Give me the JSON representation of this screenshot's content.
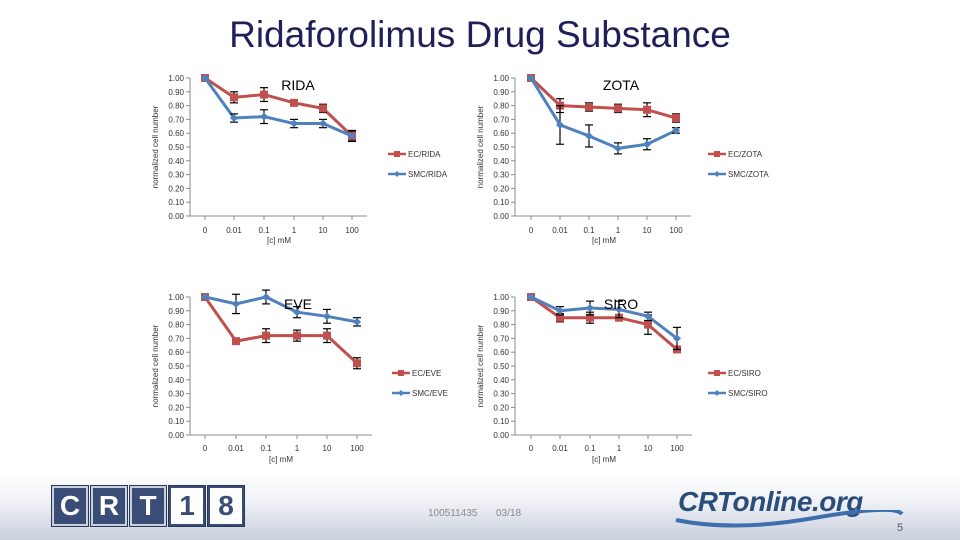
{
  "slide": {
    "title": "Ridaforolimus Drug Substance",
    "footer_id": "100511435",
    "footer_date": "03/18",
    "page_number": "5",
    "logo_left_letters": [
      "C",
      "R",
      "T",
      "1",
      "8"
    ],
    "logo_right_text": "CRTonline.org"
  },
  "colors": {
    "ec": "#c0504d",
    "smc": "#4f81bd",
    "title": "#1f1f5c",
    "axis": "#8c8c8c"
  },
  "chart_data": [
    {
      "type": "line",
      "title": "RIDA",
      "ylabel": "normalized cell number",
      "xlabel": "[c] mM",
      "categories": [
        "0",
        "0.01",
        "0.1",
        "1",
        "10",
        "100"
      ],
      "y_ticks": [
        "0.00",
        "0.10",
        "0.20",
        "0.30",
        "0.40",
        "0.50",
        "0.60",
        "0.70",
        "0.80",
        "0.90",
        "1.00"
      ],
      "ylim": [
        0,
        1
      ],
      "series": [
        {
          "name": "EC/RIDA",
          "values": [
            1.0,
            0.86,
            0.88,
            0.82,
            0.78,
            0.58
          ],
          "errors": [
            0,
            0.04,
            0.05,
            0.02,
            0.03,
            0.03
          ]
        },
        {
          "name": "SMC/RIDA",
          "values": [
            1.0,
            0.71,
            0.72,
            0.67,
            0.67,
            0.58
          ],
          "errors": [
            0,
            0.03,
            0.05,
            0.03,
            0.03,
            0.04
          ]
        }
      ]
    },
    {
      "type": "line",
      "title": "ZOTA",
      "ylabel": "normalized cell number",
      "xlabel": "[c] mM",
      "categories": [
        "0",
        "0.01",
        "0.1",
        "1",
        "10",
        "100"
      ],
      "y_ticks": [
        "0.00",
        "0.10",
        "0.20",
        "0.30",
        "0.40",
        "0.50",
        "0.60",
        "0.70",
        "0.80",
        "0.90",
        "1.00"
      ],
      "ylim": [
        0,
        1
      ],
      "series": [
        {
          "name": "EC/ZOTA",
          "values": [
            1.0,
            0.8,
            0.79,
            0.78,
            0.77,
            0.71
          ],
          "errors": [
            0,
            0.05,
            0.03,
            0.03,
            0.05,
            0.03
          ]
        },
        {
          "name": "SMC/ZOTA",
          "values": [
            1.0,
            0.66,
            0.58,
            0.49,
            0.52,
            0.62
          ],
          "errors": [
            0,
            0.14,
            0.08,
            0.04,
            0.04,
            0.02
          ]
        }
      ]
    },
    {
      "type": "line",
      "title": "EVE",
      "ylabel": "normalized cell number",
      "xlabel": "[c] mM",
      "categories": [
        "0",
        "0.01",
        "0.1",
        "1",
        "10",
        "100"
      ],
      "y_ticks": [
        "0.00",
        "0.10",
        "0.20",
        "0.30",
        "0.40",
        "0.50",
        "0.60",
        "0.70",
        "0.80",
        "0.90",
        "1.00"
      ],
      "ylim": [
        0,
        1
      ],
      "series": [
        {
          "name": "EC/EVE",
          "values": [
            1.0,
            0.68,
            0.72,
            0.72,
            0.72,
            0.52
          ],
          "errors": [
            0,
            0.01,
            0.05,
            0.04,
            0.05,
            0.04
          ]
        },
        {
          "name": "SMC/EVE",
          "values": [
            1.0,
            0.95,
            1.0,
            0.89,
            0.86,
            0.82
          ],
          "errors": [
            0,
            0.07,
            0.05,
            0.04,
            0.05,
            0.03
          ]
        }
      ]
    },
    {
      "type": "line",
      "title": "SIRO",
      "ylabel": "normalized cell number",
      "xlabel": "[c] mM",
      "categories": [
        "0",
        "0.01",
        "0.1",
        "1",
        "10",
        "100"
      ],
      "y_ticks": [
        "0.00",
        "0.10",
        "0.20",
        "0.30",
        "0.40",
        "0.50",
        "0.60",
        "0.70",
        "0.80",
        "0.90",
        "1.00"
      ],
      "ylim": [
        0,
        1
      ],
      "series": [
        {
          "name": "EC/SIRO",
          "values": [
            1.0,
            0.85,
            0.85,
            0.85,
            0.8,
            0.62
          ],
          "errors": [
            0,
            0.03,
            0.04,
            0.02,
            0.07,
            0.02
          ]
        },
        {
          "name": "SMC/SIRO",
          "values": [
            1.0,
            0.9,
            0.92,
            0.91,
            0.86,
            0.7
          ],
          "errors": [
            0,
            0.03,
            0.05,
            0.06,
            0.03,
            0.08
          ]
        }
      ]
    }
  ]
}
